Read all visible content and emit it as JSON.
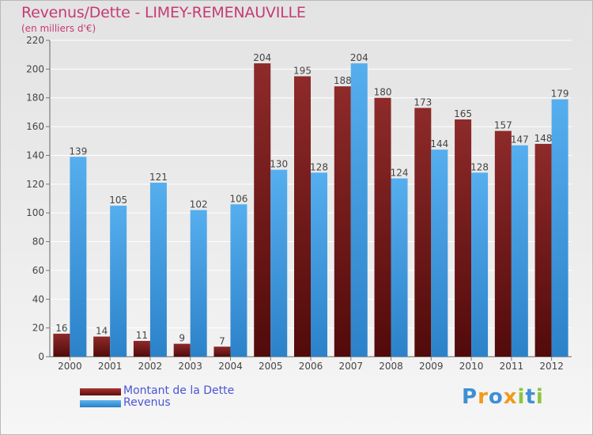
{
  "chart_data": {
    "type": "bar",
    "title": "Revenus/Dette - LIMEY-REMENAUVILLE",
    "subtitle": "(en milliers d'€)",
    "categories": [
      "2000",
      "2001",
      "2002",
      "2003",
      "2004",
      "2005",
      "2006",
      "2007",
      "2008",
      "2009",
      "2010",
      "2011",
      "2012"
    ],
    "series": [
      {
        "name": "Montant de la Dette",
        "color": "#7a1c1c",
        "values": [
          16,
          14,
          11,
          9,
          7,
          204,
          195,
          188,
          180,
          173,
          165,
          157,
          148
        ]
      },
      {
        "name": "Revenus",
        "color": "#3d9ae0",
        "values": [
          139,
          105,
          121,
          102,
          106,
          130,
          128,
          204,
          124,
          144,
          128,
          147,
          179
        ]
      }
    ],
    "ylim": [
      0,
      220
    ],
    "yticks": [
      0,
      20,
      40,
      60,
      80,
      100,
      120,
      140,
      160,
      180,
      200,
      220
    ],
    "grid": true,
    "legend": "bottom-left"
  },
  "legend": {
    "items": [
      {
        "label": "Montant de la Dette",
        "color": "#7a1c1c"
      },
      {
        "label": "Revenus",
        "color": "#3d9ae0"
      }
    ]
  },
  "logo": {
    "letters": [
      "P",
      "r",
      "o",
      "x",
      "i",
      "t",
      "i"
    ],
    "colors": [
      "#3f8fd2",
      "#f09a1a",
      "#3f8fd2",
      "#f09a1a",
      "#8cc63f",
      "#3f8fd2",
      "#8cc63f"
    ]
  }
}
